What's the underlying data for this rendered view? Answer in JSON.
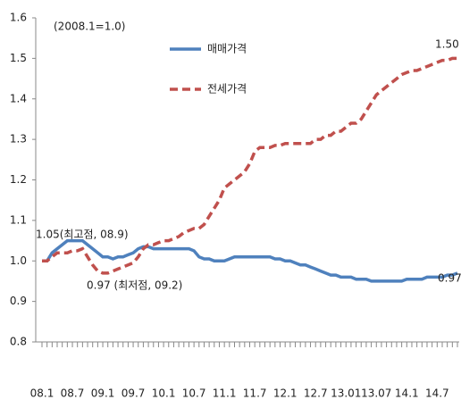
{
  "chart_data": {
    "type": "line",
    "annotations": [
      "(2008.1=1.0)",
      "1.05(최고점, 08.9)",
      "0.97 (최저점, 09.2)",
      "1.50",
      "0.97"
    ],
    "categories": [
      "08.1",
      null,
      null,
      null,
      null,
      null,
      "08.7",
      null,
      null,
      null,
      null,
      null,
      "09.1",
      null,
      null,
      null,
      null,
      null,
      "09.7",
      null,
      null,
      null,
      null,
      null,
      "10.1",
      null,
      null,
      null,
      null,
      null,
      "10.7",
      null,
      null,
      null,
      null,
      null,
      "11.1",
      null,
      null,
      null,
      null,
      null,
      "11.7",
      null,
      null,
      null,
      null,
      null,
      "12.1",
      null,
      null,
      null,
      null,
      null,
      "12.7",
      null,
      null,
      null,
      null,
      null,
      "13.01",
      null,
      null,
      null,
      null,
      null,
      "13.07",
      null,
      null,
      null,
      null,
      null,
      "14.1",
      null,
      null,
      null,
      null,
      null,
      "14.7",
      null,
      null,
      null,
      null
    ],
    "series": [
      {
        "name": "매매가격",
        "color": "#4f81bd",
        "dash": false,
        "values": [
          1.0,
          1.0,
          1.02,
          1.03,
          1.04,
          1.05,
          1.05,
          1.05,
          1.05,
          1.04,
          1.03,
          1.02,
          1.01,
          1.01,
          1.005,
          1.01,
          1.01,
          1.015,
          1.02,
          1.03,
          1.035,
          1.035,
          1.03,
          1.03,
          1.03,
          1.03,
          1.03,
          1.03,
          1.03,
          1.03,
          1.025,
          1.01,
          1.005,
          1.005,
          1.0,
          1.0,
          1.0,
          1.005,
          1.01,
          1.01,
          1.01,
          1.01,
          1.01,
          1.01,
          1.01,
          1.01,
          1.005,
          1.005,
          1.0,
          1.0,
          0.995,
          0.99,
          0.99,
          0.985,
          0.98,
          0.975,
          0.97,
          0.965,
          0.965,
          0.96,
          0.96,
          0.96,
          0.955,
          0.955,
          0.955,
          0.95,
          0.95,
          0.95,
          0.95,
          0.95,
          0.95,
          0.95,
          0.955,
          0.955,
          0.955,
          0.955,
          0.96,
          0.96,
          0.96,
          0.96,
          0.965,
          0.965,
          0.97
        ]
      },
      {
        "name": "전세가격",
        "color": "#c0504d",
        "dash": true,
        "values": [
          1.0,
          1.0,
          1.01,
          1.02,
          1.02,
          1.02,
          1.025,
          1.025,
          1.03,
          1.01,
          0.99,
          0.975,
          0.97,
          0.97,
          0.975,
          0.98,
          0.985,
          0.99,
          0.995,
          1.01,
          1.03,
          1.04,
          1.04,
          1.045,
          1.05,
          1.05,
          1.055,
          1.06,
          1.07,
          1.075,
          1.08,
          1.08,
          1.09,
          1.11,
          1.13,
          1.15,
          1.18,
          1.19,
          1.2,
          1.21,
          1.22,
          1.24,
          1.27,
          1.28,
          1.28,
          1.28,
          1.285,
          1.285,
          1.29,
          1.29,
          1.29,
          1.29,
          1.29,
          1.29,
          1.3,
          1.3,
          1.31,
          1.31,
          1.32,
          1.32,
          1.33,
          1.34,
          1.34,
          1.35,
          1.37,
          1.39,
          1.41,
          1.42,
          1.43,
          1.44,
          1.45,
          1.46,
          1.465,
          1.47,
          1.47,
          1.475,
          1.48,
          1.485,
          1.49,
          1.495,
          1.495,
          1.5,
          1.5
        ]
      }
    ],
    "ylim": [
      0.8,
      1.6
    ],
    "yticks": [
      0.8,
      0.9,
      {
        "value": 1,
        "label": "1.0"
      },
      1.1,
      1.2,
      1.3,
      1.4,
      1.5,
      1.6
    ]
  }
}
